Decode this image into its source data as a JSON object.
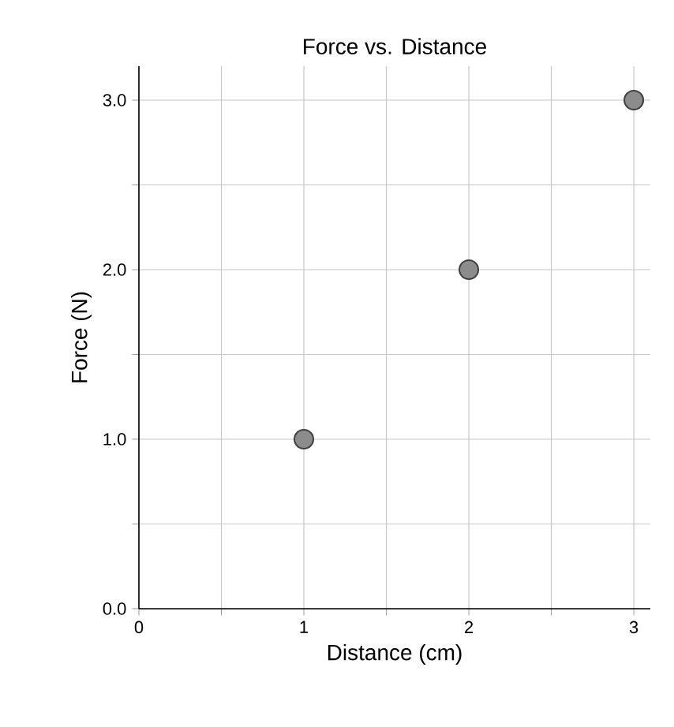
{
  "chart_data": {
    "type": "scatter",
    "title": "Force vs. Distance",
    "xlabel": "Distance (cm)",
    "ylabel": "Force (N)",
    "x": [
      1,
      2,
      3
    ],
    "values": [
      1.0,
      2.0,
      3.0
    ],
    "color": "#8c8c8c",
    "marker": "circle",
    "grid": true,
    "xlim": [
      0,
      3.1
    ],
    "ylim": [
      0,
      3.2
    ],
    "xticks": [
      0,
      {
        "value": 0.5,
        "label": null
      },
      1,
      {
        "value": 1.5,
        "label": null
      },
      2,
      {
        "value": 2.5,
        "label": null
      },
      3
    ],
    "yticks": [
      {
        "value": 0,
        "label": "0.0"
      },
      {
        "value": 0.5,
        "label": null
      },
      {
        "value": 1,
        "label": "1.0"
      },
      {
        "value": 1.5,
        "label": null
      },
      {
        "value": 2,
        "label": "2.0"
      },
      {
        "value": 2.5,
        "label": null
      },
      {
        "value": 3,
        "label": "3.0"
      }
    ]
  }
}
